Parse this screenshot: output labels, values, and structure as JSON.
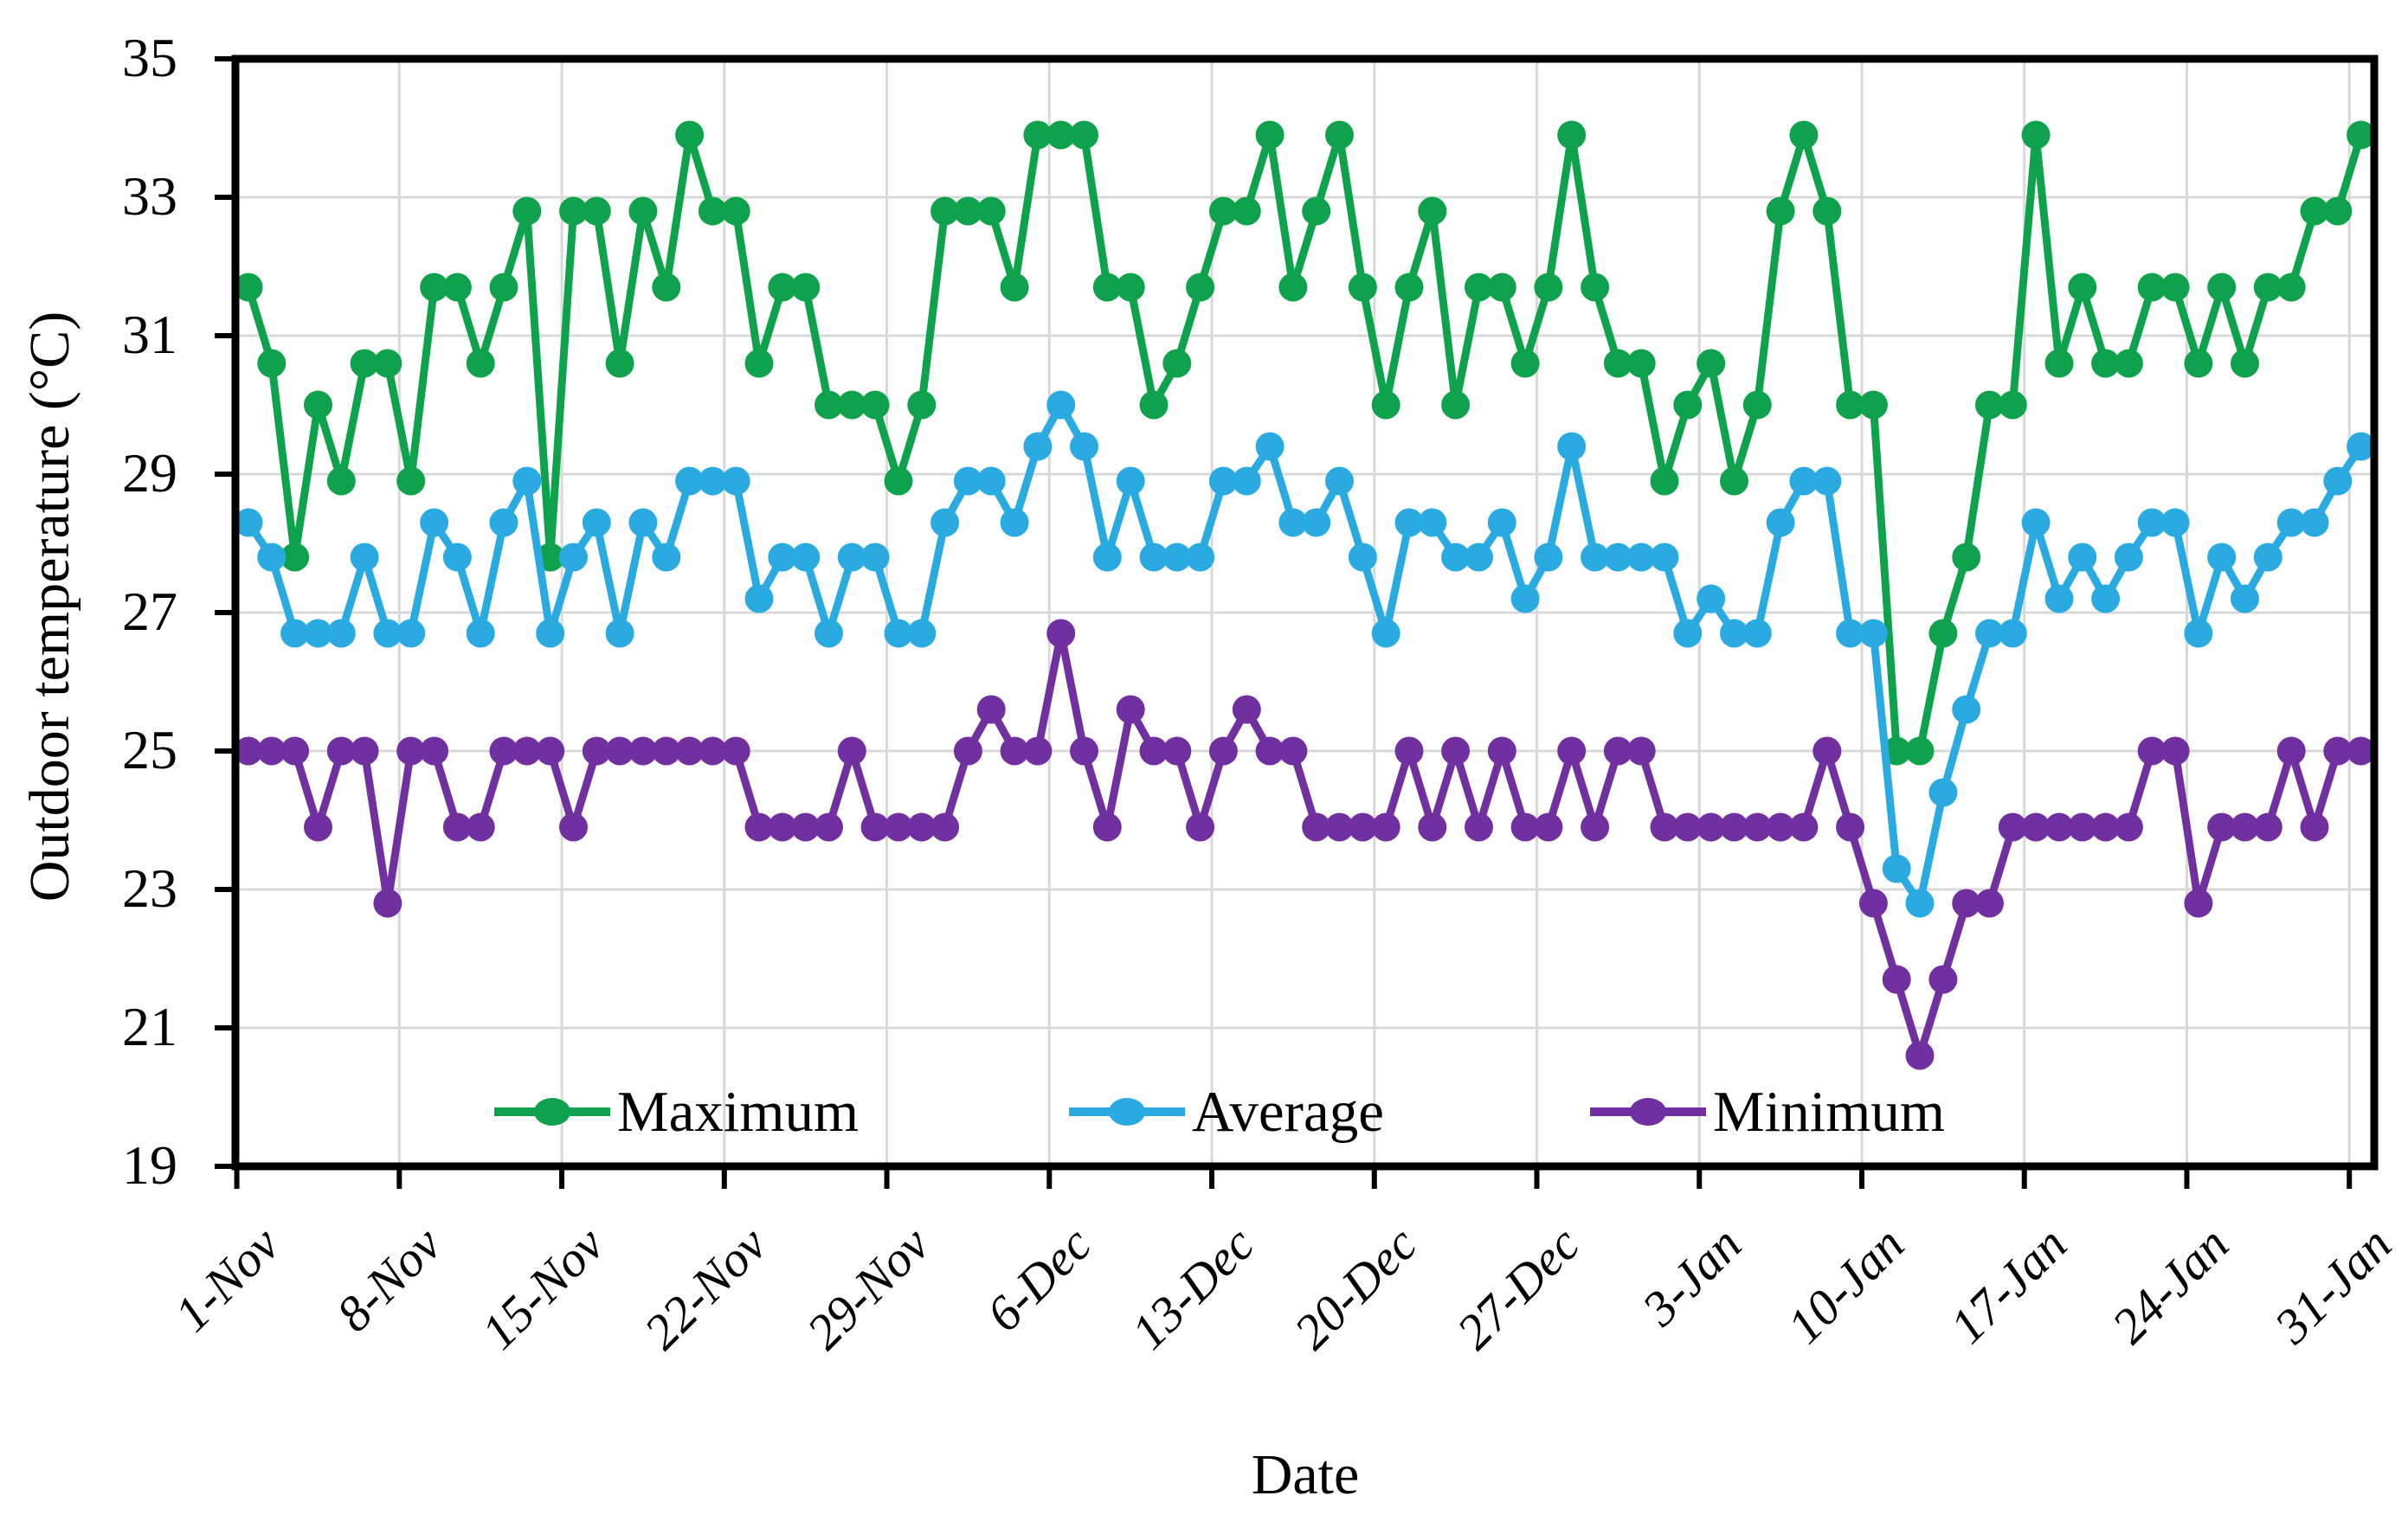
{
  "y_axis": {
    "title": "Outdoor temperature (°C)",
    "tick_labels": [
      "35",
      "33",
      "31",
      "29",
      "27",
      "25",
      "23",
      "21",
      "19"
    ],
    "min": 19,
    "max": 35,
    "tick_step": 2
  },
  "x_axis": {
    "title": "Date",
    "tick_labels": [
      "1-Nov",
      "8-Nov",
      "15-Nov",
      "22-Nov",
      "29-Nov",
      "6-Dec",
      "13-Dec",
      "20-Dec",
      "27-Dec",
      "3-Jan",
      "10-Jan",
      "17-Jan",
      "24-Jan",
      "31-Jan"
    ],
    "tick_interval_days": 7
  },
  "legend": {
    "items": [
      {
        "label": "Maximum",
        "color": "#0FA24D"
      },
      {
        "label": "Average",
        "color": "#29ABE2"
      },
      {
        "label": "Minimum",
        "color": "#7030A0"
      }
    ]
  },
  "colors": {
    "maximum": "#0FA24D",
    "average": "#29ABE2",
    "minimum": "#7030A0",
    "gridline": "#D9D9D9",
    "axis": "#000000"
  },
  "chart_data": {
    "type": "line",
    "title": "",
    "xlabel": "Date",
    "ylabel": "Outdoor temperature (°C)",
    "ylim": [
      19,
      35
    ],
    "grid": true,
    "legend_position": "inside-bottom",
    "n_points": 92,
    "x_start": "1-Nov",
    "x_end": "31-Jan",
    "x_tick_labels": [
      "1-Nov",
      "8-Nov",
      "15-Nov",
      "22-Nov",
      "29-Nov",
      "6-Dec",
      "13-Dec",
      "20-Dec",
      "27-Dec",
      "3-Jan",
      "10-Jan",
      "17-Jan",
      "24-Jan",
      "31-Jan"
    ],
    "series": [
      {
        "name": "Maximum",
        "color": "#0FA24D",
        "values": [
          31.7,
          30.6,
          27.8,
          30.0,
          28.9,
          30.6,
          30.6,
          28.9,
          31.7,
          31.7,
          30.6,
          31.7,
          32.8,
          27.8,
          32.8,
          32.8,
          30.6,
          32.8,
          31.7,
          33.9,
          32.8,
          32.8,
          30.6,
          31.7,
          31.7,
          30.0,
          30.0,
          30.0,
          28.9,
          30.0,
          32.8,
          32.8,
          32.8,
          31.7,
          33.9,
          33.9,
          33.9,
          31.7,
          31.7,
          30.0,
          30.6,
          31.7,
          32.8,
          32.8,
          33.9,
          31.7,
          32.8,
          33.9,
          31.7,
          30.0,
          31.7,
          32.8,
          30.0,
          31.7,
          31.7,
          30.6,
          31.7,
          33.9,
          31.7,
          30.6,
          30.6,
          28.9,
          30.0,
          30.6,
          28.9,
          30.0,
          32.8,
          33.9,
          32.8,
          30.0,
          30.0,
          25.0,
          25.0,
          26.7,
          27.8,
          30.0,
          30.0,
          33.9,
          30.6,
          31.7,
          30.6,
          30.6,
          31.7,
          31.7,
          30.6,
          31.7,
          30.6,
          31.7,
          31.7,
          32.8,
          32.8,
          33.9
        ]
      },
      {
        "name": "Average",
        "color": "#29ABE2",
        "values": [
          28.3,
          27.8,
          26.7,
          26.7,
          26.7,
          27.8,
          26.7,
          26.7,
          28.3,
          27.8,
          26.7,
          28.3,
          28.9,
          26.7,
          27.8,
          28.3,
          26.7,
          28.3,
          27.8,
          28.9,
          28.9,
          28.9,
          27.2,
          27.8,
          27.8,
          26.7,
          27.8,
          27.8,
          26.7,
          26.7,
          28.3,
          28.9,
          28.9,
          28.3,
          29.4,
          30.0,
          29.4,
          27.8,
          28.9,
          27.8,
          27.8,
          27.8,
          28.9,
          28.9,
          29.4,
          28.3,
          28.3,
          28.9,
          27.8,
          26.7,
          28.3,
          28.3,
          27.8,
          27.8,
          28.3,
          27.2,
          27.8,
          29.4,
          27.8,
          27.8,
          27.8,
          27.8,
          26.7,
          27.2,
          26.7,
          26.7,
          28.3,
          28.9,
          28.9,
          26.7,
          26.7,
          23.3,
          22.8,
          24.4,
          25.6,
          26.7,
          26.7,
          28.3,
          27.2,
          27.8,
          27.2,
          27.8,
          28.3,
          28.3,
          26.7,
          27.8,
          27.2,
          27.8,
          28.3,
          28.3,
          28.9,
          29.4
        ]
      },
      {
        "name": "Minimum",
        "color": "#7030A0",
        "values": [
          25.0,
          25.0,
          25.0,
          23.9,
          25.0,
          25.0,
          22.8,
          25.0,
          25.0,
          23.9,
          23.9,
          25.0,
          25.0,
          25.0,
          23.9,
          25.0,
          25.0,
          25.0,
          25.0,
          25.0,
          25.0,
          25.0,
          23.9,
          23.9,
          23.9,
          23.9,
          25.0,
          23.9,
          23.9,
          23.9,
          23.9,
          25.0,
          25.6,
          25.0,
          25.0,
          26.7,
          25.0,
          23.9,
          25.6,
          25.0,
          25.0,
          23.9,
          25.0,
          25.6,
          25.0,
          25.0,
          23.9,
          23.9,
          23.9,
          23.9,
          25.0,
          23.9,
          25.0,
          23.9,
          25.0,
          23.9,
          23.9,
          25.0,
          23.9,
          25.0,
          25.0,
          23.9,
          23.9,
          23.9,
          23.9,
          23.9,
          23.9,
          23.9,
          25.0,
          23.9,
          22.8,
          21.7,
          20.6,
          21.7,
          22.8,
          22.8,
          23.9,
          23.9,
          23.9,
          23.9,
          23.9,
          23.9,
          25.0,
          25.0,
          22.8,
          23.9,
          23.9,
          23.9,
          25.0,
          23.9,
          25.0,
          25.0
        ]
      }
    ]
  }
}
